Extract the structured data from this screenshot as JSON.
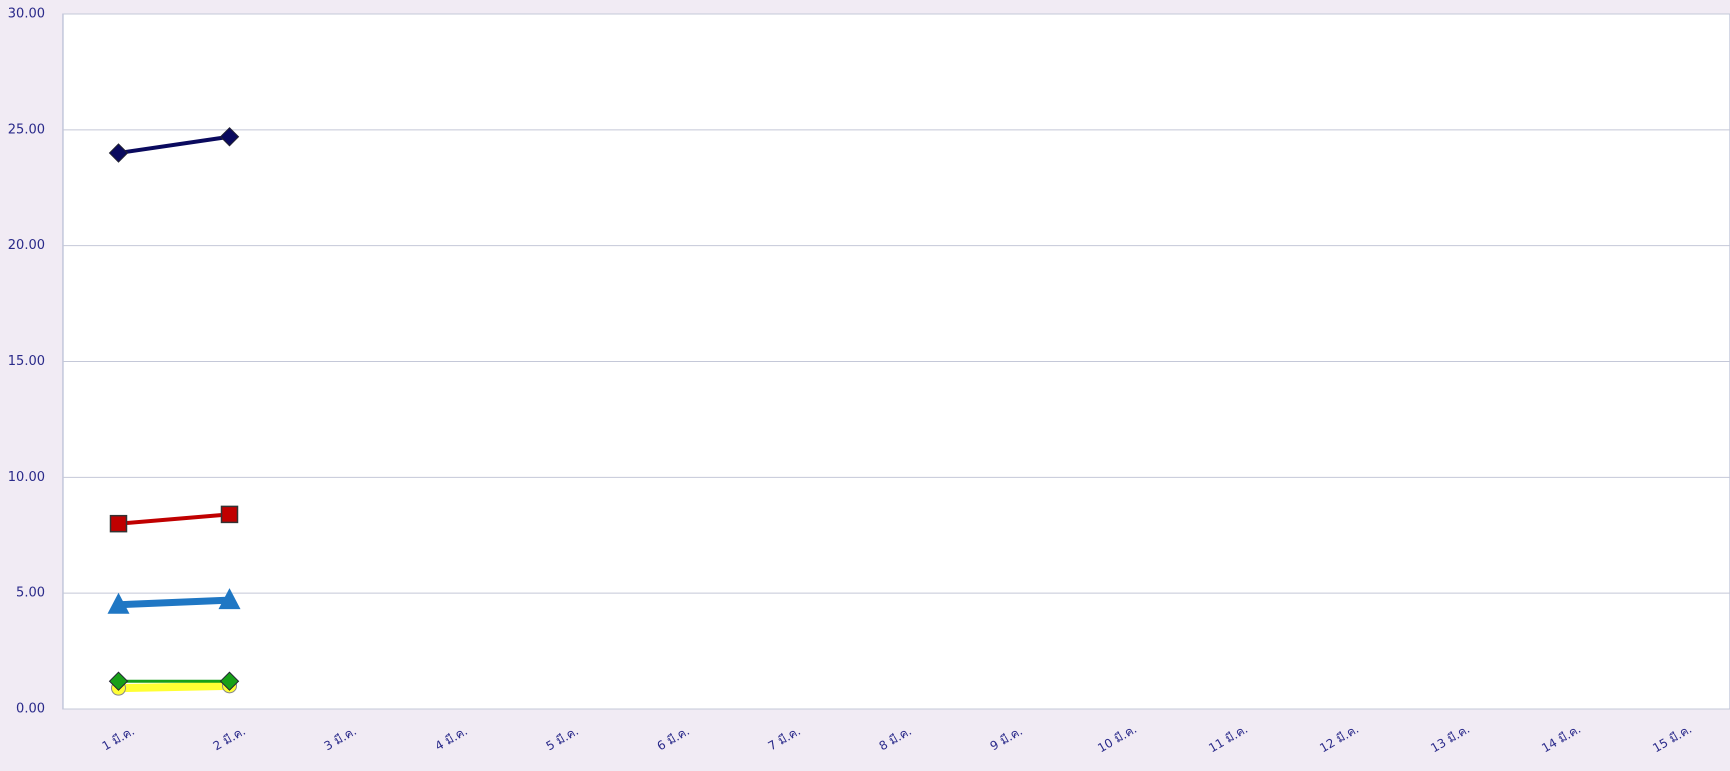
{
  "chart_data": {
    "type": "line",
    "categories": [
      "1 มี.ค.",
      "2 มี.ค.",
      "3 มี.ค.",
      "4 มี.ค.",
      "5 มี.ค.",
      "6 มี.ค.",
      "7 มี.ค.",
      "8 มี.ค.",
      "9 มี.ค.",
      "10 มี.ค.",
      "11 มี.ค.",
      "12 มี.ค.",
      "13 มี.ค.",
      "14 มี.ค.",
      "15 มี.ค."
    ],
    "series": [
      {
        "color": "#0a0a5e",
        "marker": "diamond",
        "line_width": 4,
        "values": [
          24.0,
          24.7,
          null,
          null,
          null,
          null,
          null,
          null,
          null,
          null,
          null,
          null,
          null,
          null,
          null
        ]
      },
      {
        "color": "#c00000",
        "marker": "square",
        "line_width": 4,
        "values": [
          8.0,
          8.4,
          null,
          null,
          null,
          null,
          null,
          null,
          null,
          null,
          null,
          null,
          null,
          null,
          null
        ]
      },
      {
        "color": "#1f77c4",
        "marker": "triangle",
        "line_width": 7,
        "values": [
          4.5,
          4.7,
          null,
          null,
          null,
          null,
          null,
          null,
          null,
          null,
          null,
          null,
          null,
          null,
          null
        ]
      },
      {
        "color": "#ffff33",
        "marker": "circle",
        "line_width": 8,
        "values": [
          0.9,
          1.0,
          null,
          null,
          null,
          null,
          null,
          null,
          null,
          null,
          null,
          null,
          null,
          null,
          null
        ]
      },
      {
        "color": "#18a018",
        "marker": "diamond",
        "line_width": 3,
        "values": [
          1.2,
          1.2,
          null,
          null,
          null,
          null,
          null,
          null,
          null,
          null,
          null,
          null,
          null,
          null,
          null
        ]
      }
    ],
    "ylim": [
      0,
      30
    ],
    "yticks": [
      {
        "value": 0,
        "label": "0.00"
      },
      {
        "value": 5,
        "label": "5.00"
      },
      {
        "value": 10,
        "label": "10.00"
      },
      {
        "value": 15,
        "label": "15.00"
      },
      {
        "value": 20,
        "label": "20.00"
      },
      {
        "value": 25,
        "label": "25.00"
      },
      {
        "value": 30,
        "label": "30.00"
      }
    ],
    "grid": true
  }
}
